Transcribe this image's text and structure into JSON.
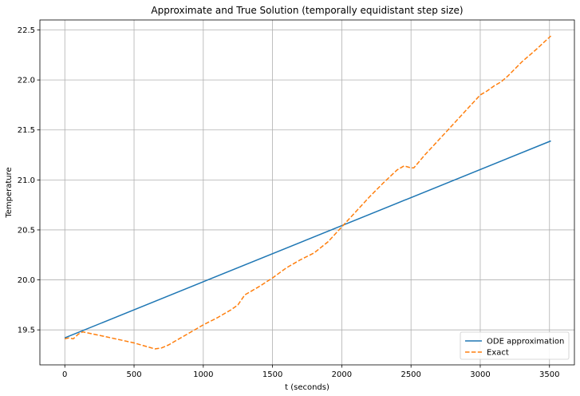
{
  "chart_data": {
    "type": "line",
    "title": "Approximate and True Solution (temporally equidistant step size)",
    "xlabel": "t (seconds)",
    "ylabel": "Temperature",
    "xlim": [
      -180,
      3680
    ],
    "ylim": [
      19.15,
      22.6
    ],
    "x_ticks": [
      0,
      500,
      1000,
      1500,
      2000,
      2500,
      3000,
      3500
    ],
    "y_ticks": [
      19.5,
      20.0,
      20.5,
      21.0,
      21.5,
      22.0,
      22.5
    ],
    "x_tick_labels": [
      "0",
      "500",
      "1000",
      "1500",
      "2000",
      "2500",
      "3000",
      "3500"
    ],
    "y_tick_labels": [
      "19.5",
      "20.0",
      "20.5",
      "21.0",
      "21.5",
      "22.0",
      "22.5"
    ],
    "grid": true,
    "legend_position": "lower-right",
    "series": [
      {
        "name": "ODE approximation",
        "style": "solid",
        "color": "#1f77b4",
        "x": [
          0,
          3510
        ],
        "y": [
          19.42,
          21.39
        ]
      },
      {
        "name": "Exact",
        "style": "dashed",
        "color": "#ff7f0e",
        "x": [
          0,
          30,
          60,
          100,
          130,
          200,
          300,
          400,
          500,
          600,
          650,
          700,
          750,
          800,
          900,
          1000,
          1100,
          1200,
          1250,
          1300,
          1350,
          1400,
          1500,
          1600,
          1700,
          1800,
          1900,
          2000,
          2100,
          2200,
          2300,
          2400,
          2450,
          2500,
          2520,
          2600,
          2700,
          2800,
          2900,
          3000,
          3050,
          3100,
          3150,
          3200,
          3300,
          3400,
          3510
        ],
        "y": [
          19.41,
          19.42,
          19.41,
          19.46,
          19.48,
          19.46,
          19.43,
          19.4,
          19.37,
          19.33,
          19.31,
          19.32,
          19.35,
          19.39,
          19.47,
          19.55,
          19.62,
          19.7,
          19.75,
          19.85,
          19.89,
          19.93,
          20.02,
          20.12,
          20.2,
          20.27,
          20.38,
          20.53,
          20.68,
          20.83,
          20.97,
          21.1,
          21.14,
          21.12,
          21.12,
          21.25,
          21.4,
          21.55,
          21.7,
          21.85,
          21.89,
          21.94,
          21.98,
          22.04,
          22.18,
          22.3,
          22.44
        ]
      }
    ]
  }
}
